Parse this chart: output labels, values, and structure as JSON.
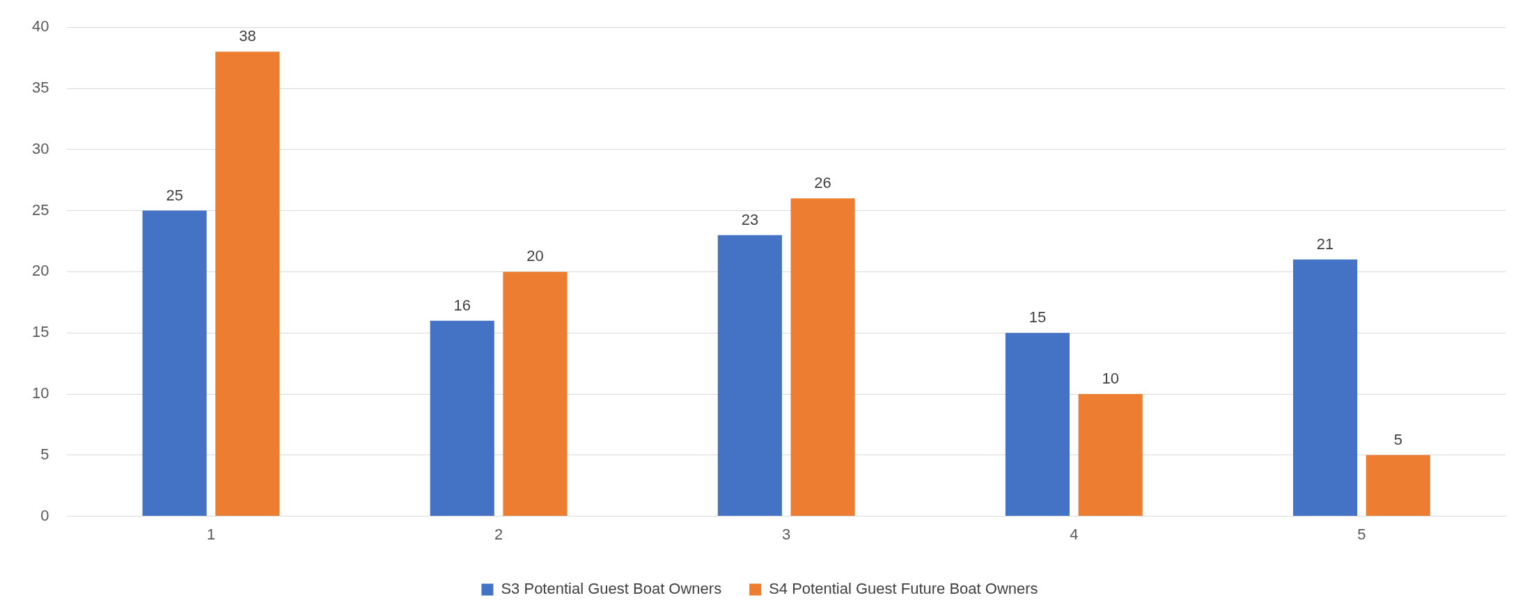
{
  "chart_data": {
    "type": "bar",
    "categories": [
      "1",
      "2",
      "3",
      "4",
      "5"
    ],
    "series": [
      {
        "name": "S3 Potential Guest Boat Owners",
        "color": "#4472c4",
        "values": [
          25,
          16,
          23,
          15,
          21
        ]
      },
      {
        "name": "S4 Potential Guest Future Boat Owners",
        "color": "#ed7d31",
        "values": [
          38,
          20,
          26,
          10,
          5
        ]
      }
    ],
    "ylim": [
      0,
      40
    ],
    "yticks": [
      0,
      5,
      10,
      15,
      20,
      25,
      30,
      35,
      40
    ],
    "grid": "y",
    "legend": "bottom",
    "data_labels": true
  }
}
